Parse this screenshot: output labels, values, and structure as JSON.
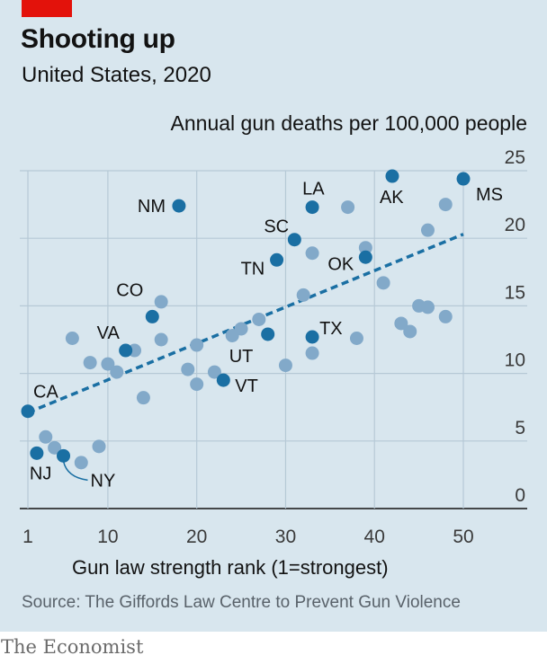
{
  "header": {
    "title": "Shooting up",
    "subtitle": "United States, 2020"
  },
  "footer": {
    "source": "Source: The Giffords Law Centre to Prevent Gun Violence",
    "brand": "The Economist"
  },
  "colors": {
    "background": "#d8e6ee",
    "accent_red": "#e3120b",
    "highlight_dot": "#1a6fa3",
    "other_dot": "#82a9c9",
    "trendline": "#1a6fa3"
  },
  "chart_data": {
    "type": "scatter",
    "title": "Shooting up",
    "subtitle": "United States, 2020",
    "xlabel": "Gun law strength rank (1=strongest)",
    "ylabel": "Annual gun deaths per 100,000 people",
    "xlim": [
      0,
      57
    ],
    "ylim": [
      0,
      25
    ],
    "xticks": [
      1,
      10,
      20,
      30,
      40,
      50
    ],
    "yticks": [
      0,
      5,
      10,
      15,
      20,
      25
    ],
    "grid": true,
    "trendline": {
      "x": [
        1,
        50
      ],
      "y": [
        7.1,
        20.3
      ],
      "style": "dashed"
    },
    "highlighted": [
      {
        "label": "CA",
        "x": 1,
        "y": 7.2
      },
      {
        "label": "NJ",
        "x": 2,
        "y": 4.1
      },
      {
        "label": "NY",
        "x": 5,
        "y": 3.9
      },
      {
        "label": "VA",
        "x": 12,
        "y": 11.7
      },
      {
        "label": "CO",
        "x": 15,
        "y": 14.2
      },
      {
        "label": "NM",
        "x": 18,
        "y": 22.4
      },
      {
        "label": "VT",
        "x": 23,
        "y": 9.5
      },
      {
        "label": "UT",
        "x": 28,
        "y": 12.9
      },
      {
        "label": "TN",
        "x": 29,
        "y": 18.4
      },
      {
        "label": "SC",
        "x": 31,
        "y": 19.9
      },
      {
        "label": "LA",
        "x": 33,
        "y": 22.3
      },
      {
        "label": "TX",
        "x": 33,
        "y": 12.7
      },
      {
        "label": "OK",
        "x": 39,
        "y": 18.6
      },
      {
        "label": "AK",
        "x": 42,
        "y": 24.6
      },
      {
        "label": "MS",
        "x": 50,
        "y": 24.4
      }
    ],
    "others": [
      {
        "x": 3,
        "y": 5.3
      },
      {
        "x": 4,
        "y": 4.5
      },
      {
        "x": 7,
        "y": 3.4
      },
      {
        "x": 6,
        "y": 12.6
      },
      {
        "x": 8,
        "y": 10.8
      },
      {
        "x": 9,
        "y": 4.6
      },
      {
        "x": 10,
        "y": 10.7
      },
      {
        "x": 11,
        "y": 10.1
      },
      {
        "x": 13,
        "y": 11.7
      },
      {
        "x": 14,
        "y": 8.2
      },
      {
        "x": 16,
        "y": 15.3
      },
      {
        "x": 16,
        "y": 12.5
      },
      {
        "x": 19,
        "y": 10.3
      },
      {
        "x": 20,
        "y": 12.1
      },
      {
        "x": 20,
        "y": 9.2
      },
      {
        "x": 22,
        "y": 10.1
      },
      {
        "x": 24,
        "y": 12.8
      },
      {
        "x": 25,
        "y": 13.3
      },
      {
        "x": 27,
        "y": 14.0
      },
      {
        "x": 30,
        "y": 10.6
      },
      {
        "x": 32,
        "y": 15.8
      },
      {
        "x": 33,
        "y": 18.9
      },
      {
        "x": 33,
        "y": 11.5
      },
      {
        "x": 37,
        "y": 22.3
      },
      {
        "x": 38,
        "y": 12.6
      },
      {
        "x": 39,
        "y": 19.3
      },
      {
        "x": 41,
        "y": 16.7
      },
      {
        "x": 43,
        "y": 13.7
      },
      {
        "x": 44,
        "y": 13.1
      },
      {
        "x": 45,
        "y": 15.0
      },
      {
        "x": 46,
        "y": 20.6
      },
      {
        "x": 46,
        "y": 14.9
      },
      {
        "x": 48,
        "y": 22.5
      },
      {
        "x": 48,
        "y": 14.2
      }
    ]
  }
}
